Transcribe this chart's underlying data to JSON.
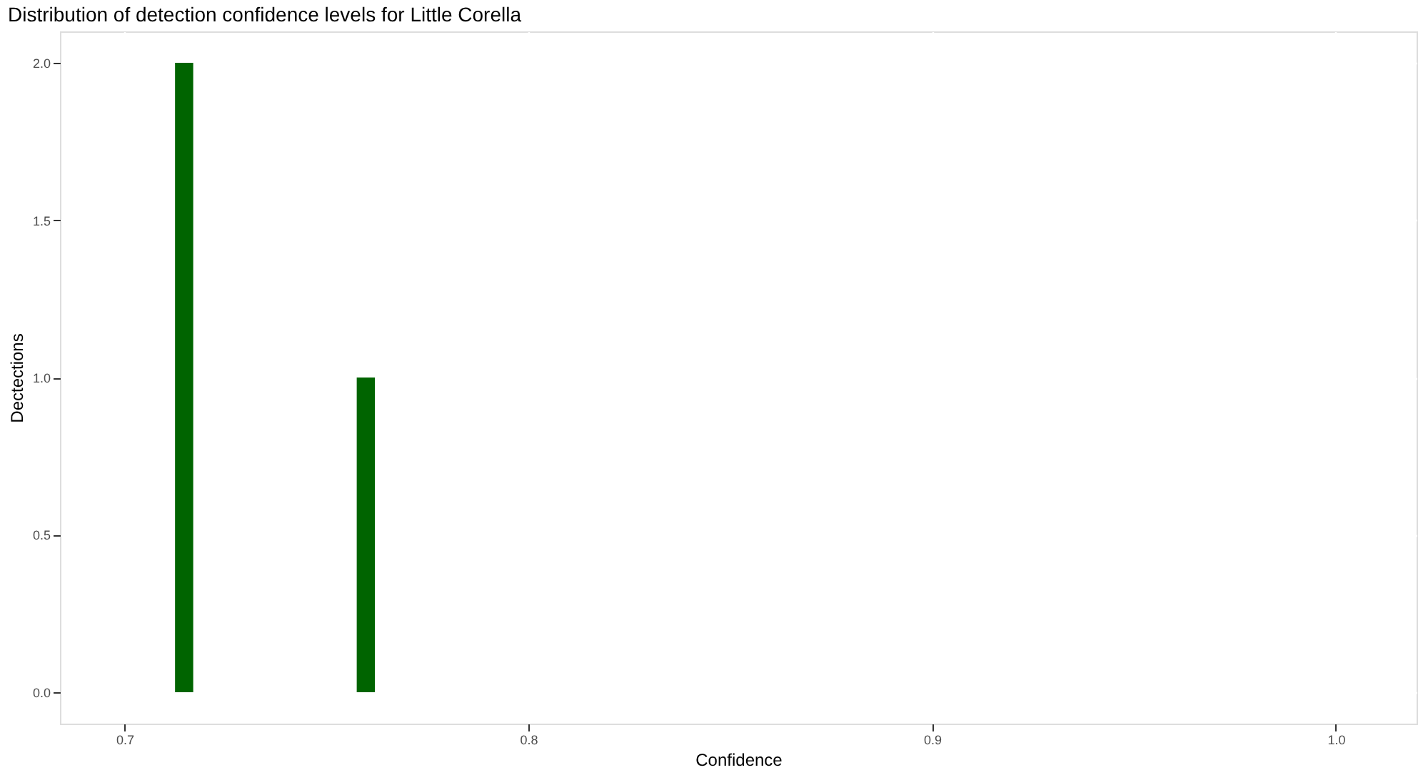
{
  "chart_data": {
    "type": "histogram",
    "title": "Distribution of detection confidence levels for Little Corella",
    "xlabel": "Confidence",
    "ylabel": "Dectections",
    "bins": [
      0.7125,
      0.717,
      0.7215,
      0.726,
      0.7305,
      0.735,
      0.7395,
      0.744,
      0.7485,
      0.753,
      0.7575,
      0.762
    ],
    "values": [
      2,
      0,
      0,
      0,
      0,
      0,
      0,
      0,
      0,
      0,
      1
    ],
    "color": "#006400",
    "xlim": [
      0.684,
      1.02
    ],
    "xticks": [
      {
        "value": 0.7,
        "label": "0.7"
      },
      {
        "value": 0.8,
        "label": "0.8"
      },
      {
        "value": 0.9,
        "label": "0.9"
      },
      {
        "value": 1.0,
        "label": "1.0"
      }
    ],
    "ylim": [
      -0.1,
      2.1
    ],
    "yticks": [
      {
        "value": 0,
        "label": "0.0"
      },
      {
        "value": 0.5,
        "label": "0.5"
      },
      {
        "value": 1.0,
        "label": "1.0"
      },
      {
        "value": 1.5,
        "label": "1.5"
      },
      {
        "value": 2.0,
        "label": "2.0"
      }
    ],
    "grid": true
  }
}
